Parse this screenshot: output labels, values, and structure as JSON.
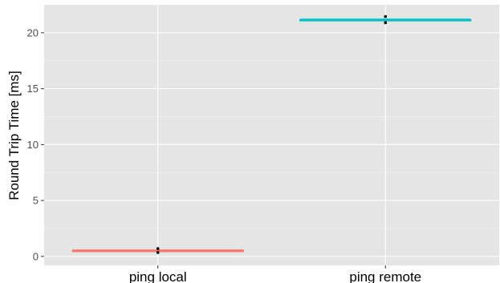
{
  "chart_data": {
    "type": "boxplot",
    "title": "",
    "xlabel": "",
    "ylabel": "Round Trip Time [ms]",
    "categories": [
      "ping local",
      "ping remote"
    ],
    "series": [
      {
        "category": "ping local",
        "color": "#f8766d",
        "min": 0.4,
        "q1": 0.45,
        "median": 0.5,
        "q3": 0.55,
        "max": 0.6,
        "outliers": [
          0.35,
          0.7
        ]
      },
      {
        "category": "ping remote",
        "color": "#00bfc4",
        "min": 21.1,
        "q1": 21.12,
        "median": 21.15,
        "q3": 21.18,
        "max": 21.2,
        "outliers": [
          20.9,
          21.45
        ]
      }
    ],
    "yticks": [
      0,
      5,
      10,
      15,
      20
    ],
    "ylim": [
      -0.8,
      22.5
    ],
    "grid": true,
    "legend": "none"
  }
}
